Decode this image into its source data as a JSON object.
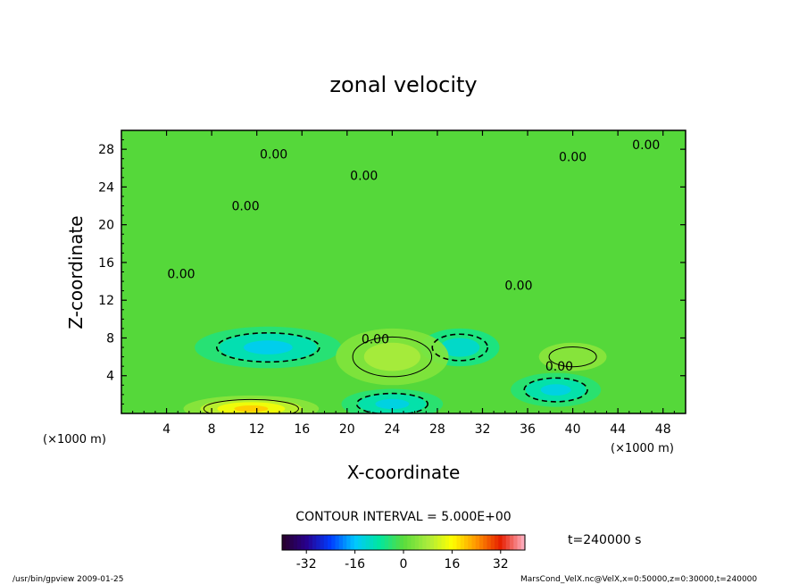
{
  "chart_data": {
    "type": "heatmap",
    "title": "zonal velocity",
    "xlabel": "X-coordinate",
    "ylabel": "Z-coordinate",
    "x_unit_left": "(×1000 m)",
    "x_unit_right": "(×1000 m)",
    "xlim": [
      0,
      50
    ],
    "ylim": [
      0,
      30
    ],
    "xticks": [
      4,
      8,
      12,
      16,
      20,
      24,
      28,
      32,
      36,
      40,
      44,
      48
    ],
    "yticks": [
      4,
      8,
      12,
      16,
      20,
      24,
      28
    ],
    "colorbar": {
      "ticks": [
        -32,
        -16,
        0,
        16,
        32
      ],
      "range": [
        -40,
        40
      ]
    },
    "contour_interval": "CONTOUR INTERVAL = 5.000E+00",
    "contour_labels": [
      {
        "text": "0.00",
        "x": 13.5,
        "y": 27.5
      },
      {
        "text": "0.00",
        "x": 21.5,
        "y": 25.2
      },
      {
        "text": "0.00",
        "x": 46.5,
        "y": 28.5
      },
      {
        "text": "0.00",
        "x": 40.0,
        "y": 27.2
      },
      {
        "text": "0.00",
        "x": 11.0,
        "y": 22.0
      },
      {
        "text": "0.00",
        "x": 5.3,
        "y": 14.8
      },
      {
        "text": "0.00",
        "x": 35.2,
        "y": 13.6
      },
      {
        "text": "0.00",
        "x": 22.5,
        "y": 7.9
      },
      {
        "text": "0.00",
        "x": 38.8,
        "y": 5.0
      }
    ],
    "features": [
      {
        "type": "min",
        "x": 13,
        "y": 7,
        "value": -15
      },
      {
        "type": "min",
        "x": 30,
        "y": 7,
        "value": -12
      },
      {
        "type": "min",
        "x": 24,
        "y": 1,
        "value": -14
      },
      {
        "type": "min",
        "x": 38.5,
        "y": 2.5,
        "value": -14
      },
      {
        "type": "max",
        "x": 11.5,
        "y": 0.5,
        "value": 20
      },
      {
        "type": "max",
        "x": 24,
        "y": 6,
        "value": 8
      },
      {
        "type": "max",
        "x": 40,
        "y": 6,
        "value": 5
      }
    ]
  },
  "annotations": {
    "time": "t=240000 s",
    "footer_left": "/usr/bin/gpview  2009-01-25",
    "footer_right": "MarsCond_VelX.nc@VelX,x=0:50000,z=0:30000,t=240000"
  }
}
